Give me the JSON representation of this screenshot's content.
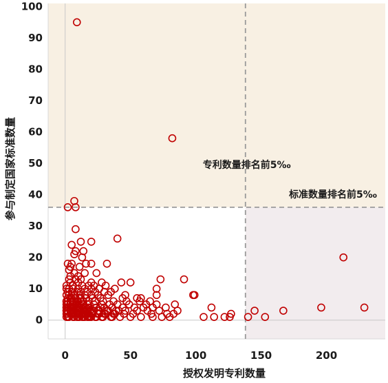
{
  "chart_data": {
    "type": "scatter",
    "title": "",
    "xlabel": "授权发明专利数量",
    "ylabel": "参与制定国家标准数量",
    "xlim": [
      -13,
      245
    ],
    "ylim": [
      -6,
      101
    ],
    "x_ticks": [
      "0",
      "50",
      "100",
      "150",
      "200"
    ],
    "x_tick_values": [
      0,
      50,
      100,
      150,
      200
    ],
    "y_ticks": [
      "0",
      "10",
      "20",
      "30",
      "40",
      "50",
      "60",
      "70",
      "80",
      "90",
      "100"
    ],
    "y_tick_values": [
      0,
      10,
      20,
      30,
      40,
      50,
      60,
      70,
      80,
      90,
      100
    ],
    "grid": false,
    "thresholds": {
      "x": 138,
      "y": 36
    },
    "regions": [
      {
        "name": "top_band",
        "color": "#f8f0e3"
      },
      {
        "name": "right_band",
        "color": "#f2ecee"
      }
    ],
    "annotations": [
      {
        "text": "专利数量排名前5‰",
        "x": 139,
        "y": 48.5
      },
      {
        "text": "标准数量排名前5‰",
        "x": 205,
        "y": 39
      }
    ],
    "marker_color": "#c00000",
    "points": [
      [
        9,
        95
      ],
      [
        82,
        58
      ],
      [
        7,
        38
      ],
      [
        2,
        36
      ],
      [
        8,
        36
      ],
      [
        8,
        29
      ],
      [
        40,
        26
      ],
      [
        12,
        25
      ],
      [
        20,
        25
      ],
      [
        5,
        24
      ],
      [
        8,
        22
      ],
      [
        14,
        22
      ],
      [
        7,
        21
      ],
      [
        13,
        20
      ],
      [
        2,
        18
      ],
      [
        5,
        18
      ],
      [
        16,
        18
      ],
      [
        20,
        18
      ],
      [
        32,
        18
      ],
      [
        4,
        17
      ],
      [
        11,
        17
      ],
      [
        3,
        16
      ],
      [
        7,
        15
      ],
      [
        15,
        15
      ],
      [
        24,
        15
      ],
      [
        4,
        14
      ],
      [
        10,
        14
      ],
      [
        3,
        13
      ],
      [
        8,
        13
      ],
      [
        12,
        13
      ],
      [
        73,
        13
      ],
      [
        91,
        13
      ],
      [
        4,
        12
      ],
      [
        10,
        12
      ],
      [
        20,
        12
      ],
      [
        28,
        12
      ],
      [
        43,
        12
      ],
      [
        50,
        12
      ],
      [
        1,
        11
      ],
      [
        6,
        11
      ],
      [
        13,
        11
      ],
      [
        18,
        11
      ],
      [
        22,
        11
      ],
      [
        31,
        11
      ],
      [
        1,
        10
      ],
      [
        3,
        10
      ],
      [
        6,
        10
      ],
      [
        10,
        10
      ],
      [
        15,
        10
      ],
      [
        20,
        10
      ],
      [
        26,
        10
      ],
      [
        38,
        10
      ],
      [
        70,
        10
      ],
      [
        2,
        9
      ],
      [
        5,
        9
      ],
      [
        9,
        9
      ],
      [
        12,
        9
      ],
      [
        17,
        9
      ],
      [
        23,
        9
      ],
      [
        30,
        9
      ],
      [
        35,
        9
      ],
      [
        1,
        8
      ],
      [
        3,
        8
      ],
      [
        7,
        8
      ],
      [
        11,
        8
      ],
      [
        15,
        8
      ],
      [
        20,
        8
      ],
      [
        25,
        8
      ],
      [
        33,
        8
      ],
      [
        46,
        8
      ],
      [
        70,
        8
      ],
      [
        98,
        8
      ],
      [
        99,
        8
      ],
      [
        2,
        7
      ],
      [
        5,
        7
      ],
      [
        8,
        7
      ],
      [
        12,
        7
      ],
      [
        16,
        7
      ],
      [
        21,
        7
      ],
      [
        27,
        7
      ],
      [
        44,
        7
      ],
      [
        55,
        7
      ],
      [
        58,
        7
      ],
      [
        1,
        6
      ],
      [
        4,
        6
      ],
      [
        7,
        6
      ],
      [
        10,
        6
      ],
      [
        14,
        6
      ],
      [
        18,
        6
      ],
      [
        23,
        6
      ],
      [
        29,
        6
      ],
      [
        37,
        6
      ],
      [
        47,
        6
      ],
      [
        57,
        6
      ],
      [
        65,
        6
      ],
      [
        2,
        5
      ],
      [
        6,
        5
      ],
      [
        9,
        5
      ],
      [
        13,
        5
      ],
      [
        17,
        5
      ],
      [
        22,
        5
      ],
      [
        28,
        5
      ],
      [
        34,
        5
      ],
      [
        40,
        5
      ],
      [
        49,
        5
      ],
      [
        62,
        5
      ],
      [
        70,
        5
      ],
      [
        84,
        5
      ],
      [
        1,
        4
      ],
      [
        3,
        4
      ],
      [
        5,
        4
      ],
      [
        8,
        4
      ],
      [
        11,
        4
      ],
      [
        15,
        4
      ],
      [
        19,
        4
      ],
      [
        24,
        4
      ],
      [
        30,
        4
      ],
      [
        36,
        4
      ],
      [
        44,
        4
      ],
      [
        53,
        4
      ],
      [
        60,
        4
      ],
      [
        67,
        4
      ],
      [
        77,
        4
      ],
      [
        112,
        4
      ],
      [
        1,
        3
      ],
      [
        4,
        3
      ],
      [
        7,
        3
      ],
      [
        10,
        3
      ],
      [
        13,
        3
      ],
      [
        17,
        3
      ],
      [
        21,
        3
      ],
      [
        26,
        3
      ],
      [
        32,
        3
      ],
      [
        39,
        3
      ],
      [
        46,
        3
      ],
      [
        55,
        3
      ],
      [
        63,
        3
      ],
      [
        72,
        3
      ],
      [
        86,
        3
      ],
      [
        145,
        3
      ],
      [
        167,
        3
      ],
      [
        2,
        2
      ],
      [
        5,
        2
      ],
      [
        8,
        2
      ],
      [
        12,
        2
      ],
      [
        16,
        2
      ],
      [
        20,
        2
      ],
      [
        25,
        2
      ],
      [
        31,
        2
      ],
      [
        37,
        2
      ],
      [
        45,
        2
      ],
      [
        52,
        2
      ],
      [
        66,
        2
      ],
      [
        78,
        2
      ],
      [
        83,
        2
      ],
      [
        127,
        2
      ],
      [
        3,
        1
      ],
      [
        6,
        1
      ],
      [
        9,
        1
      ],
      [
        14,
        1
      ],
      [
        18,
        1
      ],
      [
        23,
        1
      ],
      [
        28,
        1
      ],
      [
        35,
        1
      ],
      [
        42,
        1
      ],
      [
        50,
        1
      ],
      [
        58,
        1
      ],
      [
        67,
        1
      ],
      [
        74,
        1
      ],
      [
        80,
        1
      ],
      [
        106,
        1
      ],
      [
        114,
        1
      ],
      [
        122,
        1
      ],
      [
        126,
        1
      ],
      [
        140,
        1
      ],
      [
        153,
        1
      ],
      [
        1,
        1
      ],
      [
        1,
        2
      ],
      [
        1,
        3
      ],
      [
        1,
        4
      ],
      [
        1,
        5
      ],
      [
        1,
        6
      ],
      [
        2,
        1
      ],
      [
        2,
        3
      ],
      [
        2,
        4
      ],
      [
        2,
        6
      ],
      [
        4,
        2
      ],
      [
        4,
        4
      ],
      [
        4,
        5
      ],
      [
        4,
        7
      ],
      [
        6,
        3
      ],
      [
        6,
        4
      ],
      [
        6,
        6
      ],
      [
        7,
        1
      ],
      [
        7,
        2
      ],
      [
        7,
        4
      ],
      [
        8,
        5
      ],
      [
        9,
        3
      ],
      [
        9,
        6
      ],
      [
        10,
        1
      ],
      [
        10,
        2
      ],
      [
        10,
        4
      ],
      [
        11,
        1
      ],
      [
        11,
        3
      ],
      [
        11,
        5
      ],
      [
        12,
        4
      ],
      [
        12,
        6
      ],
      [
        13,
        1
      ],
      [
        13,
        2
      ],
      [
        14,
        3
      ],
      [
        14,
        5
      ],
      [
        15,
        1
      ],
      [
        15,
        2
      ],
      [
        16,
        3
      ],
      [
        16,
        4
      ],
      [
        17,
        1
      ],
      [
        18,
        2
      ],
      [
        18,
        4
      ],
      [
        19,
        1
      ],
      [
        19,
        3
      ],
      [
        20,
        1
      ],
      [
        21,
        2
      ],
      [
        22,
        3
      ],
      [
        24,
        1
      ],
      [
        25,
        3
      ],
      [
        26,
        2
      ],
      [
        27,
        4
      ],
      [
        29,
        1
      ],
      [
        30,
        2
      ],
      [
        33,
        3
      ],
      [
        36,
        1
      ],
      [
        38,
        2
      ],
      [
        41,
        3
      ],
      [
        196,
        4
      ],
      [
        213,
        20
      ],
      [
        229,
        4
      ]
    ]
  }
}
